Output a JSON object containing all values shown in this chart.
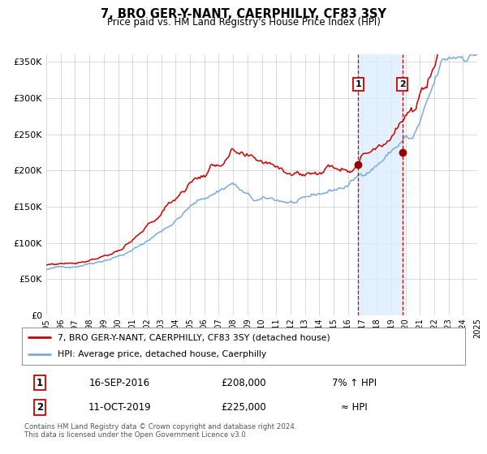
{
  "title": "7, BRO GER-Y-NANT, CAERPHILLY, CF83 3SY",
  "subtitle": "Price paid vs. HM Land Registry's House Price Index (HPI)",
  "legend_label_1": "7, BRO GER-Y-NANT, CAERPHILLY, CF83 3SY (detached house)",
  "legend_label_2": "HPI: Average price, detached house, Caerphilly",
  "annotation_1_date": "16-SEP-2016",
  "annotation_1_price": "£208,000",
  "annotation_1_hpi": "7% ↑ HPI",
  "annotation_2_date": "11-OCT-2019",
  "annotation_2_price": "£225,000",
  "annotation_2_hpi": "≈ HPI",
  "footnote": "Contains HM Land Registry data © Crown copyright and database right 2024.\nThis data is licensed under the Open Government Licence v3.0.",
  "marker1_x": 2016.72,
  "marker1_y": 208000,
  "marker2_x": 2019.79,
  "marker2_y": 225000,
  "line1_color": "#cc0000",
  "line2_color": "#7aaadd",
  "shade_color": "#ddeeff",
  "marker_color": "#990000",
  "vline_color": "#cc0000",
  "annotation_box_color": "#cc0000",
  "background_color": "#ffffff",
  "grid_color": "#cccccc",
  "ylim": [
    0,
    360000
  ],
  "xlim_start": 1995,
  "xlim_end": 2025
}
